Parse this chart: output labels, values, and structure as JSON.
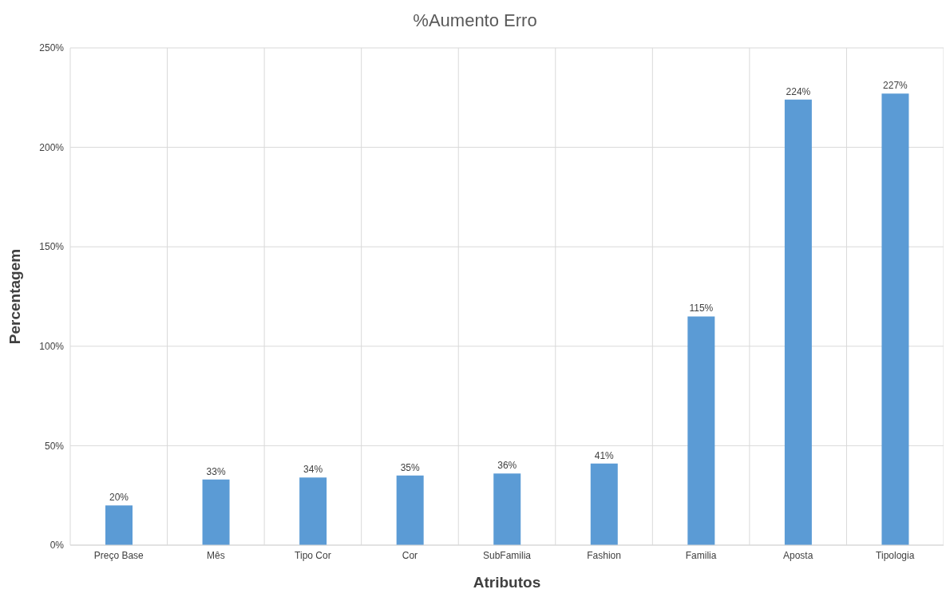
{
  "chart_data": {
    "type": "bar",
    "title": "%Aumento Erro",
    "xlabel": "Atributos",
    "ylabel": "Percentagem",
    "categories": [
      "Preço Base",
      "Mês",
      "Tipo Cor",
      "Cor",
      "SubFamilia",
      "Fashion",
      "Familia",
      "Aposta",
      "Tipologia"
    ],
    "values": [
      20,
      33,
      34,
      35,
      36,
      41,
      115,
      224,
      227
    ],
    "value_labels": [
      "20%",
      "33%",
      "34%",
      "35%",
      "36%",
      "41%",
      "115%",
      "224%",
      "227%"
    ],
    "color": "#5b9bd5",
    "ylim": [
      0,
      250
    ],
    "yticks": [
      {
        "value": 0,
        "label": "0%"
      },
      {
        "value": 50,
        "label": "50%"
      },
      {
        "value": 100,
        "label": "100%"
      },
      {
        "value": 150,
        "label": "150%"
      },
      {
        "value": 200,
        "label": "200%"
      },
      {
        "value": 250,
        "label": "250%"
      }
    ],
    "grid": true
  }
}
